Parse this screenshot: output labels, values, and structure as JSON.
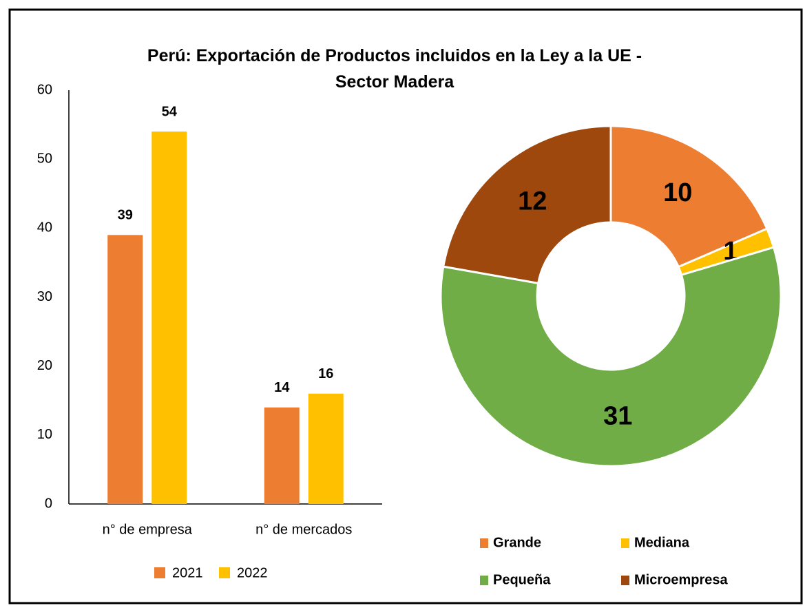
{
  "title": "Perú: Exportación de Productos incluidos en la Ley a la UE - Sector Madera",
  "chart_data": [
    {
      "type": "bar",
      "categories": [
        "n° de empresa",
        "n° de mercados"
      ],
      "series": [
        {
          "name": "2021",
          "color": "#ED7D31",
          "values": [
            39,
            14
          ]
        },
        {
          "name": "2022",
          "color": "#FFC000",
          "values": [
            54,
            16
          ]
        }
      ],
      "ylim": [
        0,
        60
      ],
      "yticks": [
        0,
        10,
        20,
        30,
        40,
        50,
        60
      ],
      "grid": false,
      "legend": "bottom"
    },
    {
      "type": "donut",
      "categories": [
        "Grande",
        "Mediana",
        "Pequeña",
        "Microempresa"
      ],
      "values": [
        10,
        1,
        31,
        12
      ],
      "colors": [
        "#ED7D31",
        "#FFC000",
        "#70AD47",
        "#9E480E"
      ],
      "legend": "bottom"
    }
  ]
}
